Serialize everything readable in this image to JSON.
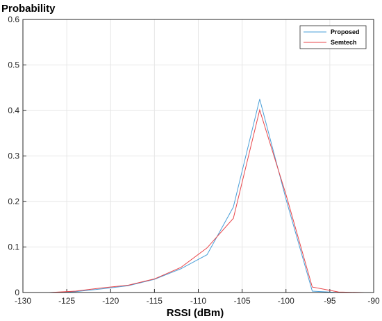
{
  "chart_data": {
    "type": "line",
    "ylabel": "Probability",
    "xlabel": "RSSI (dBm)",
    "xlim": [
      -130,
      -90
    ],
    "ylim": [
      0,
      0.6
    ],
    "xticks": [
      -130,
      -125,
      -120,
      -115,
      -110,
      -105,
      -100,
      -95,
      -90
    ],
    "yticks": [
      0,
      0.1,
      0.2,
      0.3,
      0.4,
      0.5,
      0.6
    ],
    "grid": true,
    "box": true,
    "legend_position": "top-right",
    "series": [
      {
        "name": "Proposed",
        "color": "#4a9fd8",
        "x": [
          -130,
          -127,
          -124,
          -121,
          -118,
          -115,
          -112,
          -109,
          -106,
          -103,
          -100,
          -97,
          -94,
          -91
        ],
        "y": [
          0,
          0,
          0.002,
          0.008,
          0.015,
          0.029,
          0.052,
          0.083,
          0.188,
          0.425,
          0.205,
          0.003,
          0,
          0
        ]
      },
      {
        "name": "Semtech",
        "color": "#e8464a",
        "x": [
          -130,
          -127,
          -124,
          -121,
          -118,
          -115,
          -112,
          -109,
          -106,
          -103,
          -100,
          -97,
          -94,
          -91
        ],
        "y": [
          0,
          0,
          0.003,
          0.01,
          0.016,
          0.03,
          0.055,
          0.098,
          0.163,
          0.401,
          0.215,
          0.012,
          0.001,
          0
        ]
      }
    ]
  }
}
